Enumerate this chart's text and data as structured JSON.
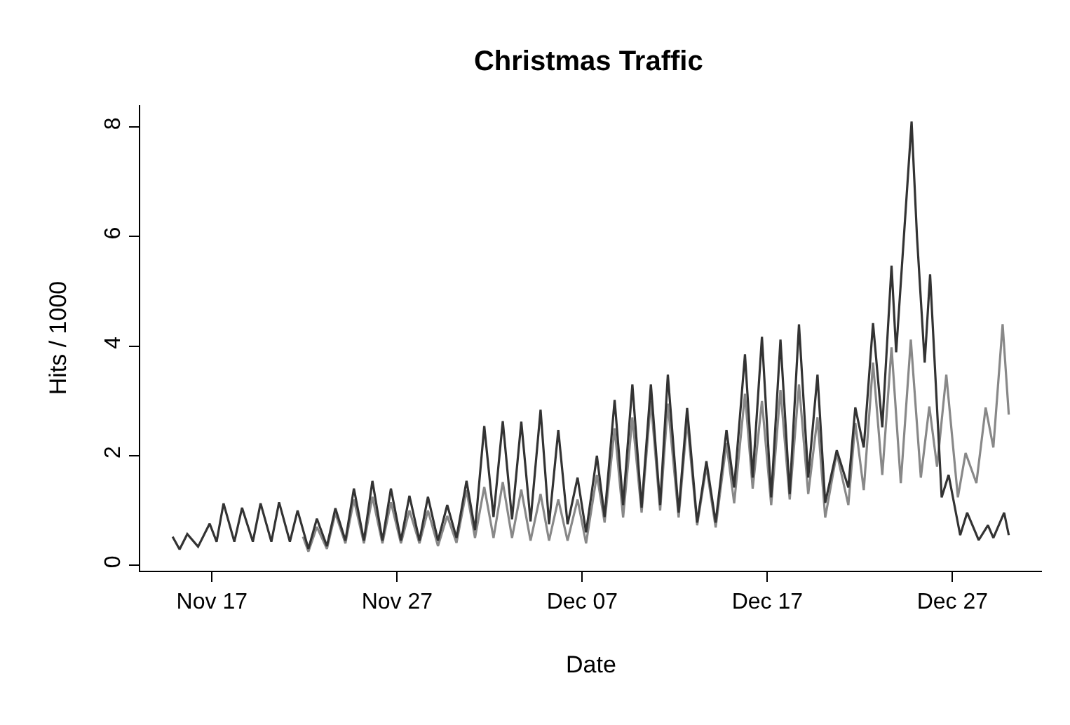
{
  "chart_data": {
    "type": "line",
    "title": "Christmas Traffic",
    "xlabel": "Date",
    "ylabel": "Hits / 1000",
    "xlim": [
      "--11-13T03:00",
      "--12-31T20:00"
    ],
    "ylim": [
      -0.1,
      8.4
    ],
    "xticks": [
      {
        "value": "--11-17",
        "label": "Nov 17"
      },
      {
        "value": "--11-27",
        "label": "Nov 27"
      },
      {
        "value": "--12-07",
        "label": "Dec 07"
      },
      {
        "value": "--12-17",
        "label": "Dec 17"
      },
      {
        "value": "--12-27",
        "label": "Dec 27"
      }
    ],
    "yticks": [
      0,
      2,
      4,
      6,
      8
    ],
    "line_style": "solid",
    "marker": "none",
    "series": [
      {
        "color": "#888888",
        "x": [
          "--11-21T22:00",
          "--11-22T05:00",
          "--11-22T16:00",
          "--11-23T05:00",
          "--11-23T16:00",
          "--11-24T05:00",
          "--11-24T16:00",
          "--11-25T05:00",
          "--11-25T16:00",
          "--11-26T05:00",
          "--11-26T16:00",
          "--11-27T05:00",
          "--11-27T16:00",
          "--11-28T05:00",
          "--11-28T16:00",
          "--11-29T05:00",
          "--11-29T17:00",
          "--11-30T05:00",
          "--11-30T18:00",
          "--12-01T05:00",
          "--12-01T17:00",
          "--12-02T05:00",
          "--12-02T17:00",
          "--12-03T05:00",
          "--12-03T17:00",
          "--12-04T05:00",
          "--12-04T18:00",
          "--12-05T05:00",
          "--12-05T17:00",
          "--12-06T05:00",
          "--12-06T18:00",
          "--12-07T05:00",
          "--12-07T19:00",
          "--12-08T05:00",
          "--12-08T18:00",
          "--12-09T05:00",
          "--12-09T17:00",
          "--12-10T05:00",
          "--12-10T17:00",
          "--12-11T05:00",
          "--12-11T15:00",
          "--12-12T05:00",
          "--12-12T16:00",
          "--12-13T05:00",
          "--12-13T17:00",
          "--12-14T05:00",
          "--12-14T19:00",
          "--12-15T05:00",
          "--12-15T19:00",
          "--12-16T05:00",
          "--12-16T17:00",
          "--12-17T05:00",
          "--12-17T17:00",
          "--12-18T05:00",
          "--12-18T17:00",
          "--12-19T05:00",
          "--12-19T17:00",
          "--12-20T03:00",
          "--12-20T18:00",
          "--12-21T09:00",
          "--12-21T18:00",
          "--12-22T05:00",
          "--12-22T17:00",
          "--12-23T05:00",
          "--12-23T17:00",
          "--12-24T05:00",
          "--12-24T18:00",
          "--12-25T07:00",
          "--12-25T18:00",
          "--12-26T04:00",
          "--12-26T16:00",
          "--12-27T07:00",
          "--12-27T17:00",
          "--12-28T07:00",
          "--12-28T19:00",
          "--12-29T05:00",
          "--12-29T17:00",
          "--12-30T01:00"
        ],
        "values": [
          0.52,
          0.25,
          0.7,
          0.3,
          0.95,
          0.4,
          1.2,
          0.4,
          1.25,
          0.4,
          1.15,
          0.4,
          1.0,
          0.4,
          1.0,
          0.35,
          0.9,
          0.41,
          1.37,
          0.5,
          1.43,
          0.5,
          1.52,
          0.5,
          1.38,
          0.45,
          1.3,
          0.45,
          1.2,
          0.45,
          1.2,
          0.4,
          1.65,
          0.78,
          2.5,
          0.87,
          2.7,
          0.96,
          3.0,
          1.0,
          2.95,
          0.87,
          2.64,
          0.73,
          1.8,
          0.69,
          2.23,
          1.13,
          3.13,
          1.4,
          3.0,
          1.1,
          3.2,
          1.2,
          3.3,
          1.3,
          2.7,
          0.87,
          2.05,
          1.1,
          2.6,
          1.37,
          3.7,
          1.65,
          3.98,
          1.5,
          4.12,
          1.6,
          2.9,
          1.8,
          3.48,
          1.24,
          2.05,
          1.5,
          2.88,
          2.15,
          4.4,
          2.75
        ]
      },
      {
        "color": "#333333",
        "x": [
          "--11-14T21:00",
          "--11-15T06:00",
          "--11-15T16:00",
          "--11-16T06:00",
          "--11-16T21:00",
          "--11-17T06:00",
          "--11-17T15:00",
          "--11-18T05:00",
          "--11-18T15:00",
          "--11-19T05:00",
          "--11-19T15:00",
          "--11-20T05:00",
          "--11-20T15:00",
          "--11-21T05:00",
          "--11-21T15:00",
          "--11-22T05:00",
          "--11-22T16:00",
          "--11-23T05:00",
          "--11-23T16:00",
          "--11-24T05:00",
          "--11-24T16:00",
          "--11-25T05:00",
          "--11-25T16:00",
          "--11-26T05:00",
          "--11-26T16:00",
          "--11-27T05:00",
          "--11-27T16:00",
          "--11-28T05:00",
          "--11-28T16:00",
          "--11-29T05:00",
          "--11-29T17:00",
          "--11-30T05:00",
          "--11-30T18:00",
          "--12-01T05:00",
          "--12-01T17:00",
          "--12-02T05:00",
          "--12-02T17:00",
          "--12-03T05:00",
          "--12-03T17:00",
          "--12-04T05:00",
          "--12-04T18:00",
          "--12-05T05:00",
          "--12-05T17:00",
          "--12-06T05:00",
          "--12-06T18:00",
          "--12-07T05:00",
          "--12-07T19:00",
          "--12-08T05:00",
          "--12-08T18:00",
          "--12-09T05:00",
          "--12-09T17:00",
          "--12-10T05:00",
          "--12-10T17:00",
          "--12-11T05:00",
          "--12-11T15:00",
          "--12-12T05:00",
          "--12-12T16:00",
          "--12-13T05:00",
          "--12-13T17:00",
          "--12-14T05:00",
          "--12-14T19:00",
          "--12-15T05:00",
          "--12-15T19:00",
          "--12-16T05:00",
          "--12-16T17:00",
          "--12-17T05:00",
          "--12-17T17:00",
          "--12-18T05:00",
          "--12-18T17:00",
          "--12-19T05:00",
          "--12-19T17:00",
          "--12-20T03:00",
          "--12-20T18:00",
          "--12-21T09:00",
          "--12-21T18:00",
          "--12-22T05:00",
          "--12-22T17:00",
          "--12-23T05:00",
          "--12-23T17:00",
          "--12-23T23:00",
          "--12-24T19:00",
          "--12-25T02:00",
          "--12-25T12:00",
          "--12-25T19:00",
          "--12-26T10:00",
          "--12-26T19:00",
          "--12-27T10:00",
          "--12-27T19:00",
          "--12-28T10:00",
          "--12-28T22:00",
          "--12-29T05:00",
          "--12-29T19:00",
          "--12-30T01:00"
        ],
        "values": [
          0.52,
          0.29,
          0.57,
          0.34,
          0.76,
          0.43,
          1.13,
          0.43,
          1.05,
          0.43,
          1.13,
          0.43,
          1.15,
          0.43,
          1.0,
          0.3,
          0.85,
          0.35,
          1.04,
          0.45,
          1.4,
          0.45,
          1.54,
          0.45,
          1.4,
          0.45,
          1.27,
          0.45,
          1.25,
          0.45,
          1.1,
          0.5,
          1.54,
          0.64,
          2.54,
          0.88,
          2.63,
          0.84,
          2.62,
          0.8,
          2.84,
          0.75,
          2.47,
          0.75,
          1.6,
          0.6,
          2.0,
          0.88,
          3.02,
          1.1,
          3.3,
          1.05,
          3.3,
          1.1,
          3.48,
          0.96,
          2.87,
          0.78,
          1.9,
          0.78,
          2.47,
          1.42,
          3.85,
          1.6,
          4.17,
          1.24,
          4.12,
          1.3,
          4.4,
          1.6,
          3.48,
          1.14,
          2.1,
          1.42,
          2.88,
          2.15,
          4.42,
          2.52,
          5.47,
          3.89,
          8.1,
          6.0,
          3.7,
          5.31,
          1.24,
          1.65,
          0.55,
          0.96,
          0.46,
          0.73,
          0.5,
          0.96,
          0.55
        ]
      }
    ]
  }
}
